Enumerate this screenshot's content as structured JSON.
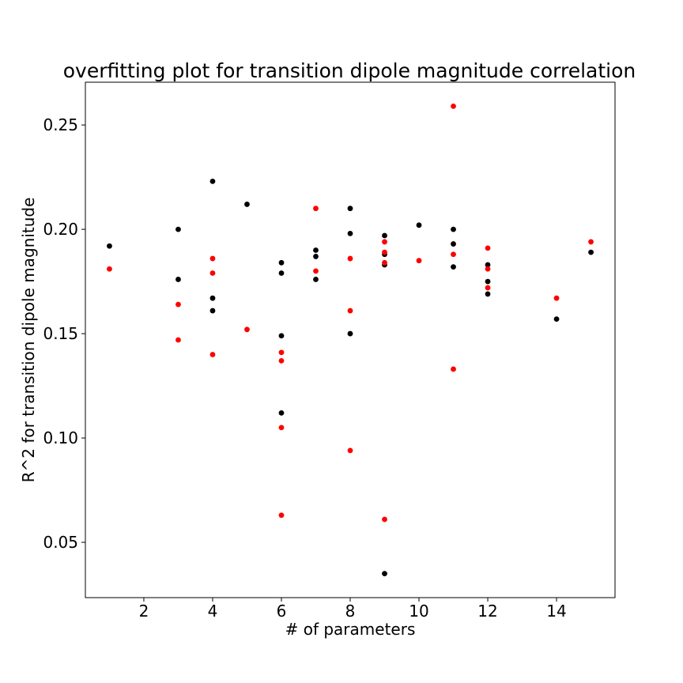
{
  "chart_data": {
    "type": "scatter",
    "title": "overfitting plot for transition dipole magnitude correlation",
    "xlabel": "# of parameters",
    "ylabel": "R^2 for transition dipole magnitude",
    "xlim": [
      0.3,
      15.7
    ],
    "ylim": [
      0.0235,
      0.2705
    ],
    "xticks": [
      2,
      4,
      6,
      8,
      10,
      12,
      14
    ],
    "yticks": [
      0.05,
      0.1,
      0.15,
      0.2,
      0.25
    ],
    "ytick_labels": [
      "0.05",
      "0.10",
      "0.15",
      "0.20",
      "0.25"
    ],
    "grid": false,
    "series": [
      {
        "color": "#000000",
        "points": [
          [
            1,
            0.192
          ],
          [
            3,
            0.2
          ],
          [
            3,
            0.176
          ],
          [
            4,
            0.223
          ],
          [
            4,
            0.167
          ],
          [
            4,
            0.161
          ],
          [
            5,
            0.212
          ],
          [
            6,
            0.184
          ],
          [
            6,
            0.179
          ],
          [
            6,
            0.149
          ],
          [
            6,
            0.112
          ],
          [
            7,
            0.19
          ],
          [
            7,
            0.187
          ],
          [
            7,
            0.176
          ],
          [
            8,
            0.21
          ],
          [
            8,
            0.198
          ],
          [
            8,
            0.15
          ],
          [
            9,
            0.197
          ],
          [
            9,
            0.188
          ],
          [
            9,
            0.183
          ],
          [
            9,
            0.035
          ],
          [
            10,
            0.202
          ],
          [
            11,
            0.2
          ],
          [
            11,
            0.193
          ],
          [
            11,
            0.182
          ],
          [
            12,
            0.183
          ],
          [
            12,
            0.175
          ],
          [
            12,
            0.169
          ],
          [
            14,
            0.157
          ],
          [
            15,
            0.189
          ]
        ]
      },
      {
        "color": "#ff0000",
        "points": [
          [
            1,
            0.181
          ],
          [
            3,
            0.164
          ],
          [
            3,
            0.147
          ],
          [
            4,
            0.186
          ],
          [
            4,
            0.179
          ],
          [
            4,
            0.14
          ],
          [
            5,
            0.152
          ],
          [
            6,
            0.141
          ],
          [
            6,
            0.137
          ],
          [
            6,
            0.105
          ],
          [
            6,
            0.063
          ],
          [
            7,
            0.21
          ],
          [
            7,
            0.18
          ],
          [
            8,
            0.186
          ],
          [
            8,
            0.161
          ],
          [
            8,
            0.094
          ],
          [
            9,
            0.194
          ],
          [
            9,
            0.189
          ],
          [
            9,
            0.184
          ],
          [
            9,
            0.061
          ],
          [
            10,
            0.185
          ],
          [
            11,
            0.259
          ],
          [
            11,
            0.188
          ],
          [
            11,
            0.133
          ],
          [
            12,
            0.191
          ],
          [
            12,
            0.181
          ],
          [
            12,
            0.172
          ],
          [
            14,
            0.167
          ],
          [
            15,
            0.194
          ]
        ]
      }
    ]
  }
}
